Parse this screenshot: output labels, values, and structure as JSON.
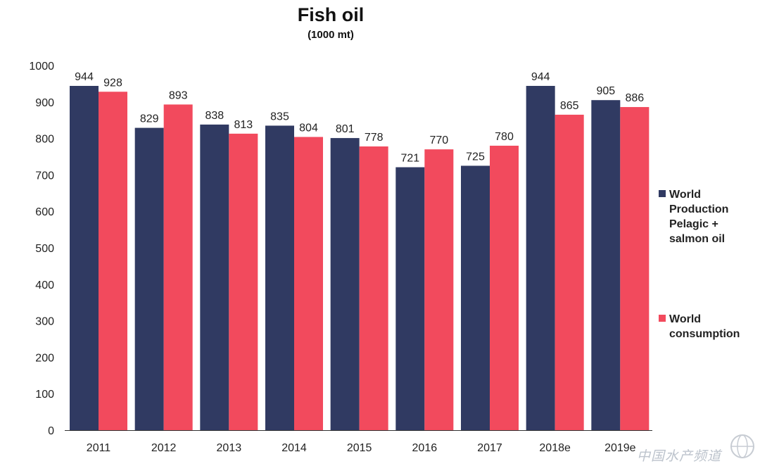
{
  "chart_data": {
    "type": "bar",
    "title": "Fish oil",
    "subtitle": "(1000 mt)",
    "categories": [
      "2011",
      "2012",
      "2013",
      "2014",
      "2015",
      "2016",
      "2017",
      "2018e",
      "2019e"
    ],
    "series": [
      {
        "name": "World Production Pelagic + salmon oil",
        "color": "#303a62",
        "values": [
          944,
          829,
          838,
          835,
          801,
          721,
          725,
          944,
          905
        ]
      },
      {
        "name": "World consumption",
        "color": "#f24a5d",
        "values": [
          928,
          893,
          813,
          804,
          778,
          770,
          780,
          865,
          886
        ]
      }
    ],
    "yticks": [
      "0",
      "100",
      "200",
      "300",
      "400",
      "500",
      "600",
      "700",
      "800",
      "900",
      "1000"
    ],
    "ylim": [
      0,
      1000
    ],
    "grid": false,
    "legend_position": "right"
  },
  "watermark": {
    "text": "中国水产频道",
    "icon": "globe-icon"
  }
}
